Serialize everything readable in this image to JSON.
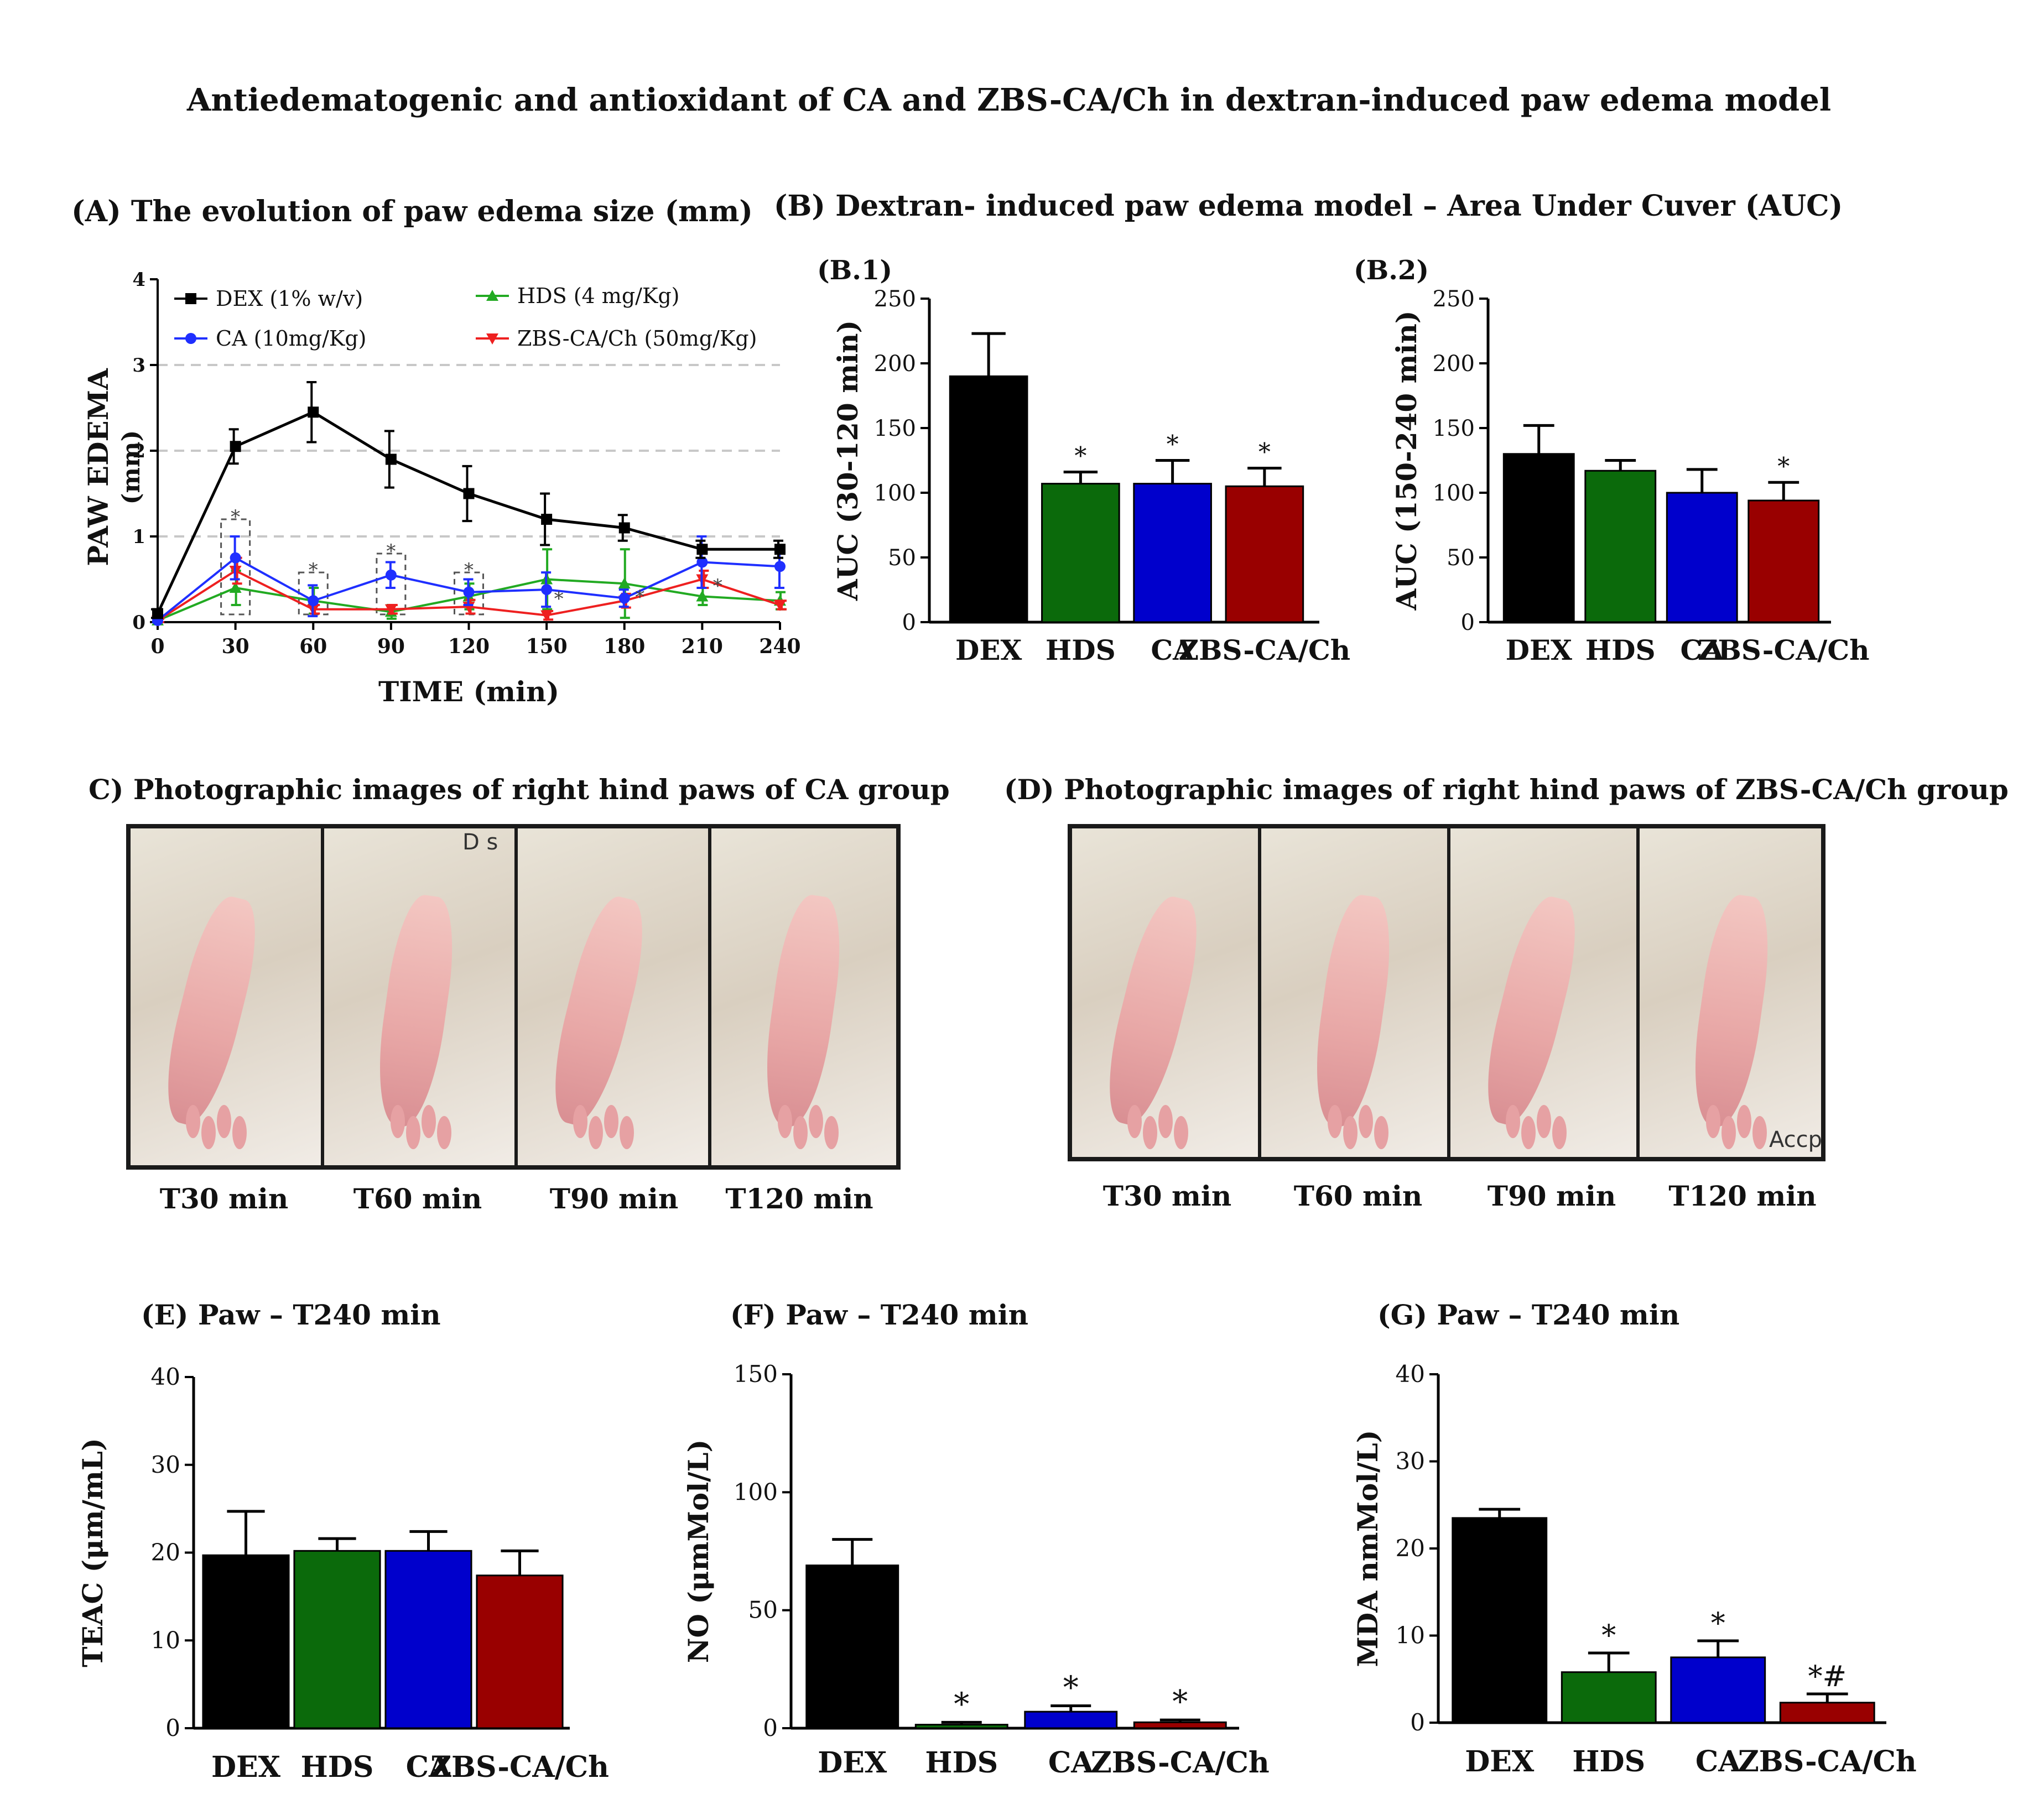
{
  "figure_title": "Antiedematogenic and antioxidant of CA and ZBS-CA/Ch in dextran-induced paw edema model",
  "colors": {
    "DEX": "#000000",
    "HDS": "#0b6a0b",
    "CA": "#0000cc",
    "ZBS": "#990000",
    "HDS_line": "#22aa22",
    "CA_line": "#1f2fff",
    "ZBS_line": "#ee2020"
  },
  "photos": {
    "C": {
      "title": "C) Photographic images of right hind paws of CA group",
      "labels": [
        "T30 min",
        "T60 min",
        "T90 min",
        "T120 min"
      ],
      "overlay_text": "D s"
    },
    "D": {
      "title": "(D) Photographic images of right hind paws of ZBS-CA/Ch group",
      "labels": [
        "T30 min",
        "T60 min",
        "T90 min",
        "T120 min"
      ],
      "overlay_text": "Accp"
    }
  },
  "chart_data": [
    {
      "id": "A",
      "type": "line",
      "title": "(A) The evolution of paw edema size (mm)",
      "xlabel": "TIME (min)",
      "ylabel": "PAW EDEMA (mm)",
      "x": [
        0,
        30,
        60,
        90,
        120,
        150,
        180,
        210,
        240
      ],
      "xticks": [
        "0",
        "30",
        "60",
        "90",
        "120",
        "150",
        "180",
        "210",
        "240"
      ],
      "ylim": [
        0,
        4
      ],
      "yticks": [
        "0",
        "1",
        "2",
        "3",
        "4"
      ],
      "legend": "top-left",
      "series": [
        {
          "name": "DEX (1% w/v)",
          "values": [
            0.1,
            2.05,
            2.45,
            1.9,
            1.5,
            1.2,
            1.1,
            0.85,
            0.85
          ],
          "errors": [
            0.05,
            0.2,
            0.35,
            0.33,
            0.32,
            0.3,
            0.15,
            0.1,
            0.1
          ]
        },
        {
          "name": "CA (10mg/Kg)",
          "values": [
            0.02,
            0.75,
            0.25,
            0.55,
            0.35,
            0.38,
            0.28,
            0.7,
            0.65
          ],
          "errors": [
            0.02,
            0.25,
            0.18,
            0.15,
            0.15,
            0.2,
            0.1,
            0.3,
            0.25
          ]
        },
        {
          "name": "HDS (4 mg/Kg)",
          "values": [
            0.02,
            0.4,
            0.25,
            0.12,
            0.3,
            0.5,
            0.45,
            0.3,
            0.25
          ],
          "errors": [
            0.02,
            0.2,
            0.15,
            0.08,
            0.15,
            0.35,
            0.4,
            0.1,
            0.1
          ]
        },
        {
          "name": "ZBS-CA/Ch (50mg/Kg)",
          "values": [
            0.02,
            0.6,
            0.15,
            0.15,
            0.18,
            0.08,
            0.25,
            0.5,
            0.2
          ],
          "errors": [
            0.02,
            0.15,
            0.05,
            0.05,
            0.08,
            0.05,
            0.08,
            0.1,
            0.05
          ]
        }
      ],
      "annotations": [
        {
          "x": 30,
          "text": "*"
        },
        {
          "x": 60,
          "text": "*"
        },
        {
          "x": 90,
          "text": "*"
        },
        {
          "x": 120,
          "text": "*"
        },
        {
          "x": 150,
          "text": "*"
        },
        {
          "x": 180,
          "text": "*"
        },
        {
          "x": 210,
          "text": "*"
        }
      ]
    },
    {
      "id": "B1",
      "type": "bar",
      "title": "(B) Dextran- induced paw edema model – Area Under Cuver (AUC)",
      "subtitle": "(B.1)",
      "categories": [
        "DEX",
        "HDS",
        "CA",
        "ZBS-CA/Ch"
      ],
      "values": [
        190,
        107,
        107,
        105
      ],
      "errors": [
        33,
        9,
        18,
        14
      ],
      "annotations": [
        "",
        "*",
        "*",
        "*"
      ],
      "ylabel": "AUC (30-120 min)",
      "ylim": [
        0,
        250
      ],
      "yticks": [
        "0",
        "50",
        "100",
        "150",
        "200",
        "250"
      ]
    },
    {
      "id": "B2",
      "type": "bar",
      "subtitle": "(B.2)",
      "categories": [
        "DEX",
        "HDS",
        "CA",
        "ZBS-CA/Ch"
      ],
      "values": [
        130,
        117,
        100,
        94
      ],
      "errors": [
        22,
        8,
        18,
        14
      ],
      "annotations": [
        "",
        "",
        "",
        "*"
      ],
      "ylabel": "AUC (150-240 min)",
      "ylim": [
        0,
        250
      ],
      "yticks": [
        "0",
        "50",
        "100",
        "150",
        "200",
        "250"
      ]
    },
    {
      "id": "E",
      "type": "bar",
      "title": "(E) Paw – T240 min",
      "categories": [
        "DEX",
        "HDS",
        "CA",
        "ZBS-CA/Ch"
      ],
      "values": [
        19.7,
        20.2,
        20.2,
        17.4
      ],
      "errors": [
        5,
        1.4,
        2.2,
        2.8
      ],
      "annotations": [
        "",
        "",
        "",
        ""
      ],
      "ylabel": "TEAC (μm/mL)",
      "ylim": [
        0,
        40
      ],
      "yticks": [
        "0",
        "10",
        "20",
        "30",
        "40"
      ]
    },
    {
      "id": "F",
      "type": "bar",
      "title": "(F) Paw – T240 min",
      "categories": [
        "DEX",
        "HDS",
        "CA",
        "ZBS-CA/Ch"
      ],
      "values": [
        69,
        1.5,
        7,
        2.5
      ],
      "errors": [
        11,
        1,
        2.5,
        1
      ],
      "annotations": [
        "",
        "*",
        "*",
        "*"
      ],
      "ylabel": "NO (μmMol/L)",
      "ylim": [
        0,
        150
      ],
      "yticks": [
        "0",
        "50",
        "100",
        "150"
      ]
    },
    {
      "id": "G",
      "type": "bar",
      "title": "(G) Paw – T240 min",
      "categories": [
        "DEX",
        "HDS",
        "CA",
        "ZBS-CA/Ch"
      ],
      "values": [
        23.5,
        5.8,
        7.5,
        2.3
      ],
      "errors": [
        1,
        2.2,
        1.9,
        1
      ],
      "annotations": [
        "",
        "*",
        "*",
        "*#"
      ],
      "ylabel": "MDA nmMol/L)",
      "ylim": [
        0,
        40
      ],
      "yticks": [
        "0",
        "10",
        "20",
        "30",
        "40"
      ]
    }
  ]
}
